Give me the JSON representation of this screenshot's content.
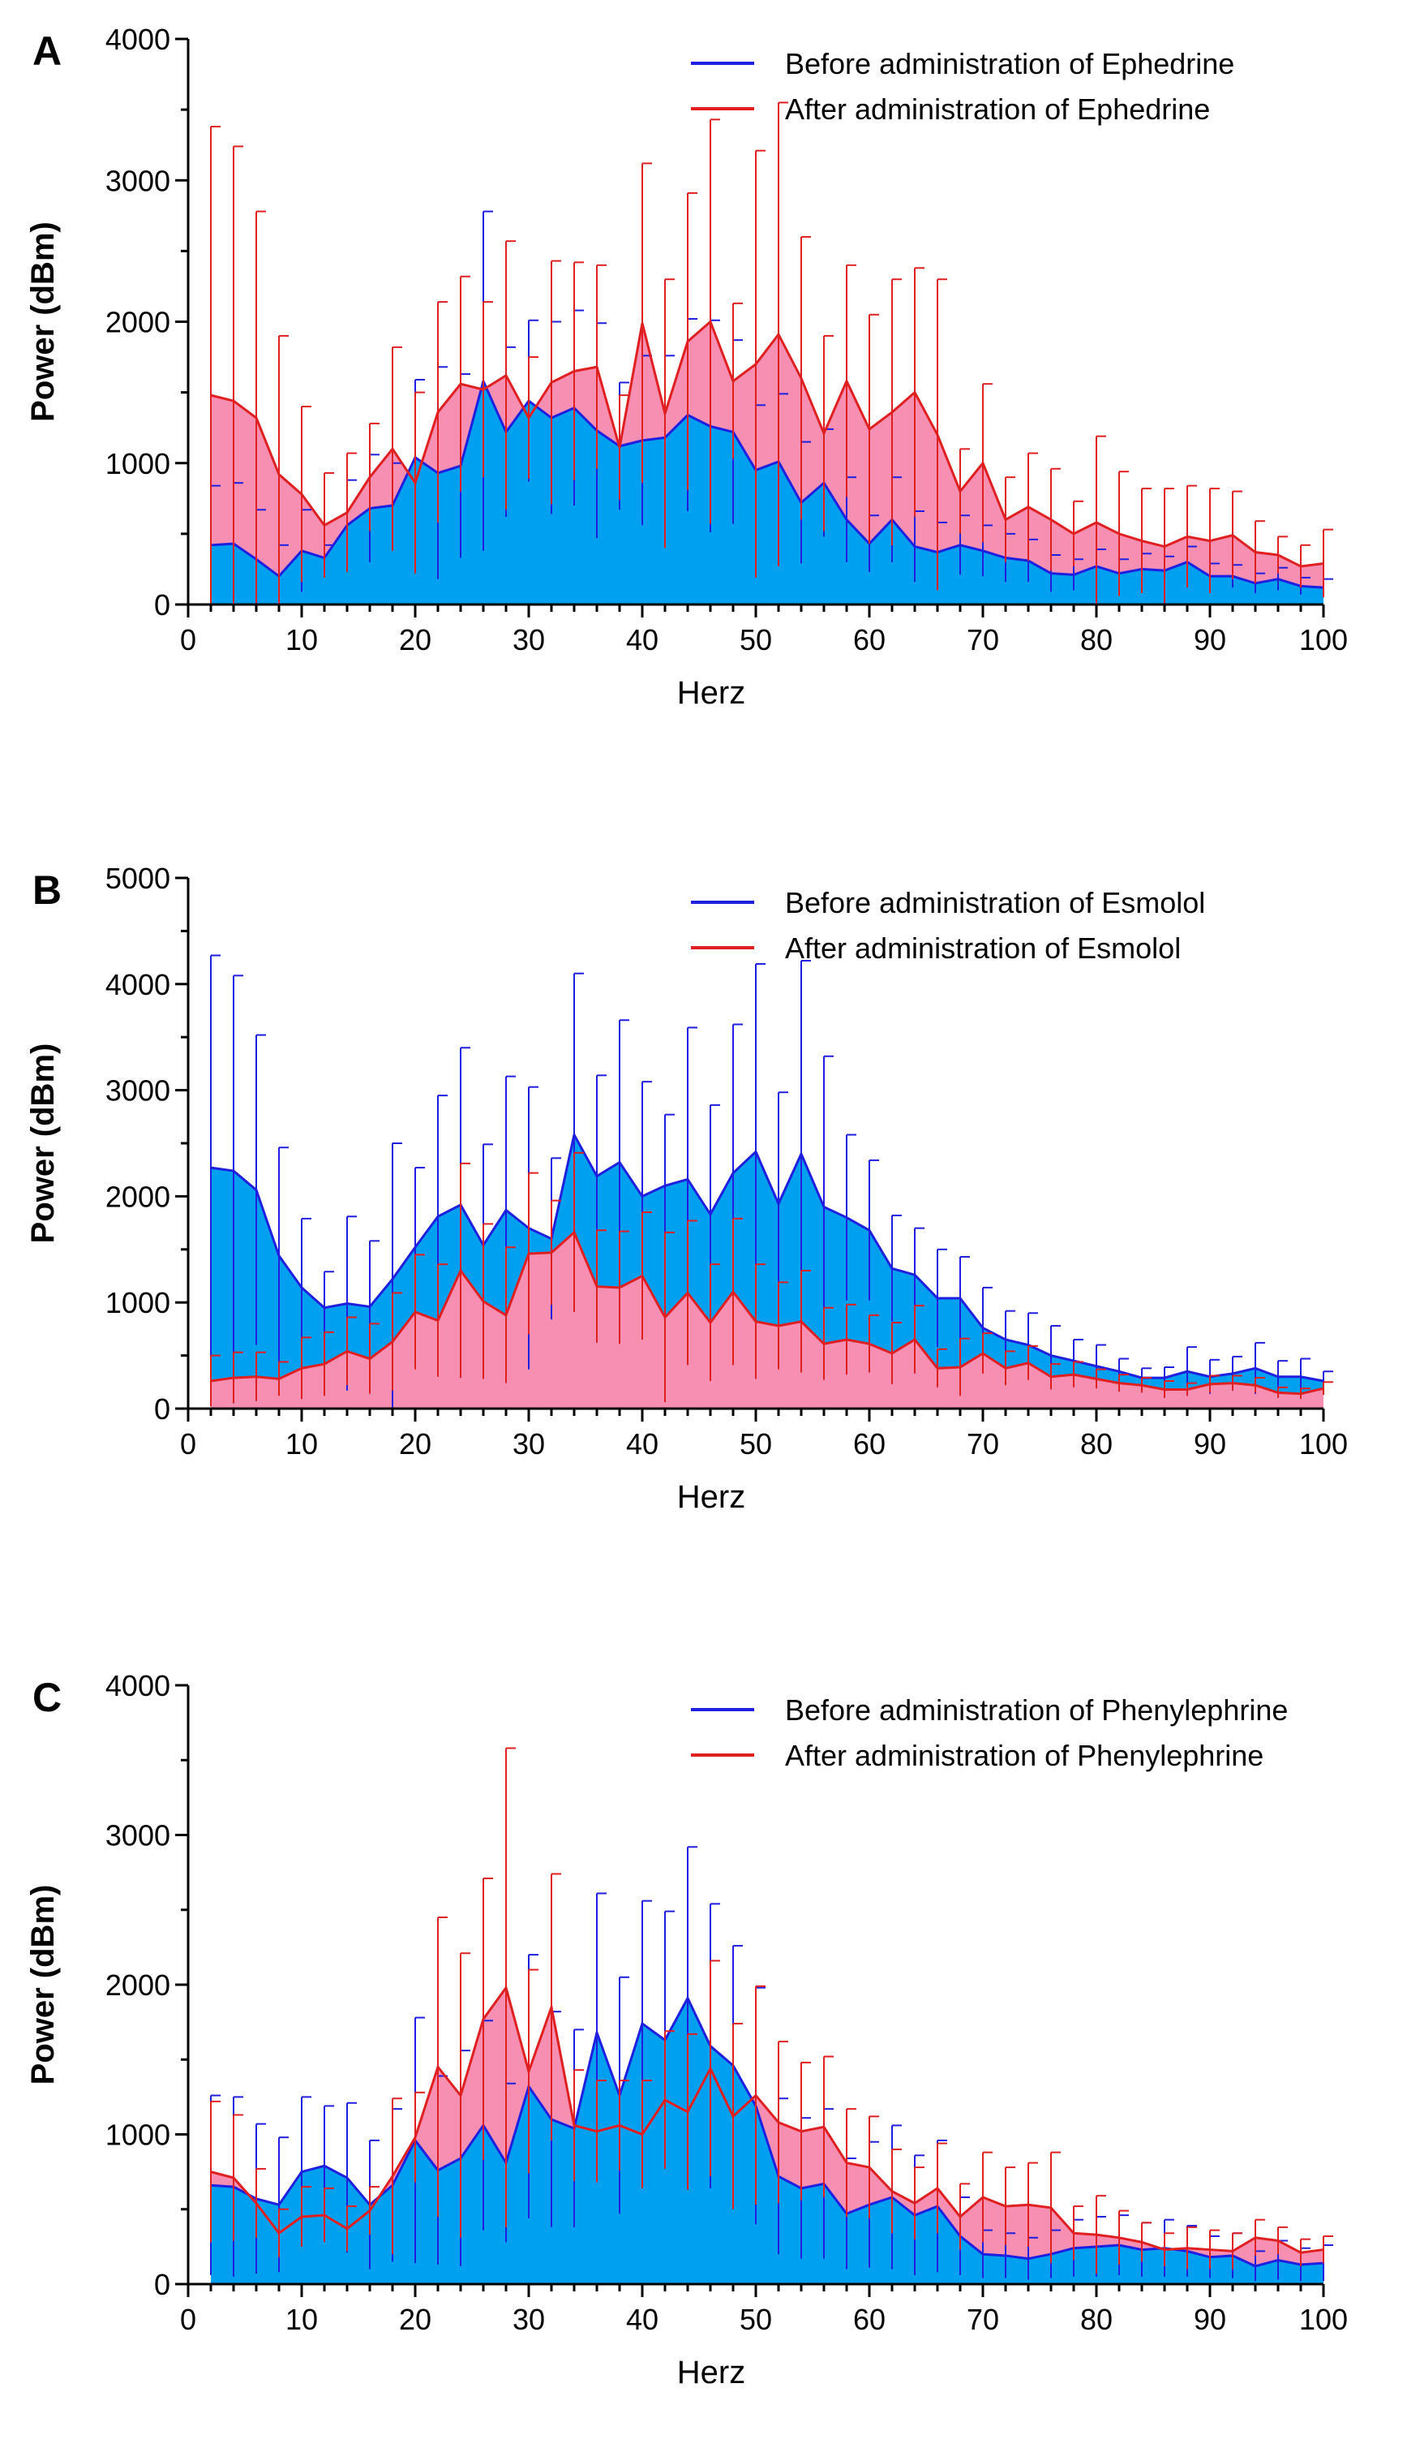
{
  "chart_data": [
    {
      "type": "area",
      "panel_label": "A",
      "xlabel": "Herz",
      "ylabel": "Power (dBm)",
      "xlim": [
        0,
        100
      ],
      "ylim": [
        0,
        4000
      ],
      "xticks": [
        0,
        10,
        20,
        30,
        40,
        50,
        60,
        70,
        80,
        90,
        100
      ],
      "yticks": [
        0,
        1000,
        2000,
        3000,
        4000
      ],
      "x": [
        2,
        4,
        6,
        8,
        10,
        12,
        14,
        16,
        18,
        20,
        22,
        24,
        26,
        28,
        30,
        32,
        34,
        36,
        38,
        40,
        42,
        44,
        46,
        48,
        50,
        52,
        54,
        56,
        58,
        60,
        62,
        64,
        66,
        68,
        70,
        72,
        74,
        76,
        78,
        80,
        82,
        84,
        86,
        88,
        90,
        92,
        94,
        96,
        98,
        100
      ],
      "series": [
        {
          "name": "Before administration of Ephedrine",
          "color": "#1f1fe0",
          "fill": "#00a0f0",
          "values": [
            420,
            430,
            320,
            200,
            380,
            330,
            560,
            680,
            700,
            1040,
            930,
            980,
            1580,
            1220,
            1440,
            1320,
            1390,
            1230,
            1120,
            1160,
            1180,
            1340,
            1260,
            1220,
            950,
            1010,
            720,
            860,
            600,
            430,
            600,
            410,
            370,
            420,
            380,
            330,
            310,
            220,
            210,
            270,
            220,
            250,
            240,
            300,
            200,
            200,
            150,
            180,
            130,
            120
          ],
          "errors": [
            420,
            430,
            350,
            220,
            290,
            90,
            320,
            380,
            300,
            550,
            750,
            650,
            1200,
            600,
            570,
            680,
            690,
            760,
            450,
            600,
            580,
            680,
            750,
            650,
            460,
            480,
            430,
            380,
            300,
            200,
            300,
            250,
            210,
            210,
            180,
            170,
            150,
            130,
            110,
            120,
            100,
            110,
            100,
            110,
            90,
            80,
            70,
            80,
            60,
            60
          ]
        },
        {
          "name": "After administration of Ephedrine",
          "color": "#e02020",
          "fill": "#f78fb3",
          "values": [
            1480,
            1440,
            1320,
            920,
            780,
            560,
            650,
            900,
            1100,
            860,
            1360,
            1560,
            1520,
            1620,
            1320,
            1570,
            1650,
            1680,
            1110,
            1990,
            1350,
            1860,
            2000,
            1580,
            1700,
            1910,
            1600,
            1210,
            1580,
            1240,
            1360,
            1500,
            1200,
            800,
            1000,
            600,
            690,
            600,
            500,
            580,
            500,
            450,
            410,
            480,
            450,
            490,
            370,
            350,
            270,
            290
          ],
          "errors": [
            1900,
            1800,
            1460,
            980,
            620,
            370,
            420,
            380,
            720,
            640,
            780,
            760,
            620,
            950,
            430,
            860,
            770,
            720,
            370,
            1130,
            950,
            1050,
            1430,
            550,
            1510,
            1640,
            1000,
            690,
            820,
            810,
            940,
            880,
            1100,
            300,
            560,
            300,
            380,
            360,
            230,
            610,
            440,
            370,
            410,
            360,
            370,
            310,
            220,
            130,
            150,
            240
          ]
        }
      ],
      "legend": [
        "Before administration of Ephedrine",
        "After administration of Ephedrine"
      ],
      "legend_position": "top-right"
    },
    {
      "type": "area",
      "panel_label": "B",
      "xlabel": "Herz",
      "ylabel": "Power (dBm)",
      "xlim": [
        0,
        100
      ],
      "ylim": [
        0,
        5000
      ],
      "xticks": [
        0,
        10,
        20,
        30,
        40,
        50,
        60,
        70,
        80,
        90,
        100
      ],
      "yticks": [
        0,
        1000,
        2000,
        3000,
        4000,
        5000
      ],
      "x": [
        2,
        4,
        6,
        8,
        10,
        12,
        14,
        16,
        18,
        20,
        22,
        24,
        26,
        28,
        30,
        32,
        34,
        36,
        38,
        40,
        42,
        44,
        46,
        48,
        50,
        52,
        54,
        56,
        58,
        60,
        62,
        64,
        66,
        68,
        70,
        72,
        74,
        76,
        78,
        80,
        82,
        84,
        86,
        88,
        90,
        92,
        94,
        96,
        98,
        100
      ],
      "series": [
        {
          "name": "Before administration of Esmolol",
          "color": "#1f1fe0",
          "fill": "#00a0f0",
          "values": [
            2270,
            2240,
            2060,
            1440,
            1140,
            950,
            990,
            960,
            1220,
            1520,
            1810,
            1920,
            1540,
            1870,
            1700,
            1600,
            2580,
            2190,
            2320,
            2000,
            2100,
            2160,
            1830,
            2220,
            2420,
            1930,
            2400,
            1900,
            1800,
            1680,
            1320,
            1260,
            1040,
            1040,
            760,
            650,
            600,
            500,
            450,
            400,
            350,
            290,
            290,
            350,
            300,
            330,
            380,
            300,
            300,
            260
          ],
          "errors": [
            2000,
            1840,
            1460,
            1020,
            650,
            340,
            820,
            620,
            1280,
            750,
            1140,
            1480,
            950,
            1260,
            1330,
            760,
            1520,
            950,
            1340,
            1080,
            670,
            1430,
            1030,
            1400,
            1770,
            1050,
            1820,
            1420,
            780,
            660,
            500,
            440,
            460,
            390,
            380,
            270,
            300,
            280,
            200,
            200,
            120,
            90,
            100,
            230,
            160,
            160,
            240,
            150,
            170,
            90
          ]
        },
        {
          "name": "After administration of Esmolol",
          "color": "#e02020",
          "fill": "#f78fb3",
          "values": [
            260,
            290,
            300,
            280,
            380,
            420,
            540,
            470,
            630,
            910,
            830,
            1300,
            1010,
            880,
            1460,
            1470,
            1660,
            1150,
            1140,
            1250,
            860,
            1090,
            810,
            1100,
            820,
            780,
            820,
            610,
            650,
            610,
            520,
            650,
            380,
            390,
            520,
            380,
            430,
            300,
            320,
            280,
            240,
            220,
            180,
            180,
            230,
            240,
            220,
            150,
            140,
            190
          ],
          "errors": [
            240,
            240,
            230,
            160,
            290,
            300,
            320,
            330,
            460,
            540,
            530,
            1010,
            730,
            640,
            760,
            490,
            750,
            530,
            530,
            600,
            800,
            680,
            550,
            690,
            540,
            410,
            480,
            340,
            330,
            270,
            290,
            320,
            180,
            270,
            190,
            160,
            160,
            120,
            120,
            90,
            80,
            70,
            80,
            60,
            80,
            70,
            70,
            50,
            50,
            60
          ]
        }
      ],
      "legend": [
        "Before administration of Esmolol",
        "After administration of Esmolol"
      ],
      "legend_position": "top-right"
    },
    {
      "type": "area",
      "panel_label": "C",
      "xlabel": "Herz",
      "ylabel": "Power (dBm)",
      "xlim": [
        0,
        100
      ],
      "ylim": [
        0,
        4000
      ],
      "xticks": [
        0,
        10,
        20,
        30,
        40,
        50,
        60,
        70,
        80,
        90,
        100
      ],
      "yticks": [
        0,
        1000,
        2000,
        3000,
        4000
      ],
      "x": [
        2,
        4,
        6,
        8,
        10,
        12,
        14,
        16,
        18,
        20,
        22,
        24,
        26,
        28,
        30,
        32,
        34,
        36,
        38,
        40,
        42,
        44,
        46,
        48,
        50,
        52,
        54,
        56,
        58,
        60,
        62,
        64,
        66,
        68,
        70,
        72,
        74,
        76,
        78,
        80,
        82,
        84,
        86,
        88,
        90,
        92,
        94,
        96,
        98,
        100
      ],
      "series": [
        {
          "name": "Before administration of Phenylephrine",
          "color": "#1f1fe0",
          "fill": "#00a0f0",
          "values": [
            660,
            650,
            570,
            530,
            750,
            790,
            710,
            530,
            660,
            960,
            760,
            840,
            1060,
            810,
            1320,
            1100,
            1040,
            1680,
            1260,
            1740,
            1630,
            1910,
            1590,
            1460,
            1190,
            720,
            640,
            670,
            470,
            530,
            580,
            460,
            520,
            320,
            200,
            190,
            170,
            200,
            240,
            250,
            260,
            230,
            240,
            220,
            180,
            190,
            120,
            160,
            130,
            140
          ],
          "errors": [
            600,
            600,
            500,
            450,
            500,
            400,
            500,
            430,
            510,
            820,
            630,
            720,
            700,
            530,
            880,
            720,
            660,
            930,
            790,
            820,
            860,
            1010,
            950,
            800,
            790,
            520,
            470,
            500,
            370,
            420,
            480,
            400,
            440,
            260,
            160,
            150,
            140,
            160,
            190,
            200,
            200,
            180,
            190,
            170,
            140,
            150,
            100,
            130,
            110,
            120
          ]
        },
        {
          "name": "After administration of Phenylephrine",
          "color": "#e02020",
          "fill": "#f78fb3",
          "values": [
            750,
            710,
            540,
            340,
            450,
            460,
            370,
            490,
            720,
            980,
            1450,
            1260,
            1770,
            1980,
            1420,
            1850,
            1060,
            1020,
            1060,
            1000,
            1230,
            1150,
            1440,
            1120,
            1260,
            1080,
            1020,
            1050,
            810,
            780,
            620,
            540,
            640,
            450,
            580,
            520,
            530,
            510,
            340,
            330,
            310,
            280,
            230,
            240,
            230,
            220,
            310,
            290,
            210,
            230
          ],
          "errors": [
            470,
            420,
            230,
            160,
            200,
            180,
            150,
            160,
            520,
            300,
            1000,
            950,
            940,
            1600,
            680,
            890,
            370,
            340,
            300,
            360,
            460,
            520,
            720,
            620,
            730,
            540,
            460,
            470,
            360,
            340,
            280,
            240,
            300,
            220,
            300,
            260,
            280,
            370,
            180,
            260,
            180,
            130,
            110,
            140,
            130,
            120,
            120,
            90,
            90,
            90
          ]
        }
      ],
      "legend": [
        "Before administration of Phenylephrine",
        "After administration of Phenylephrine"
      ],
      "legend_position": "top-right"
    }
  ]
}
